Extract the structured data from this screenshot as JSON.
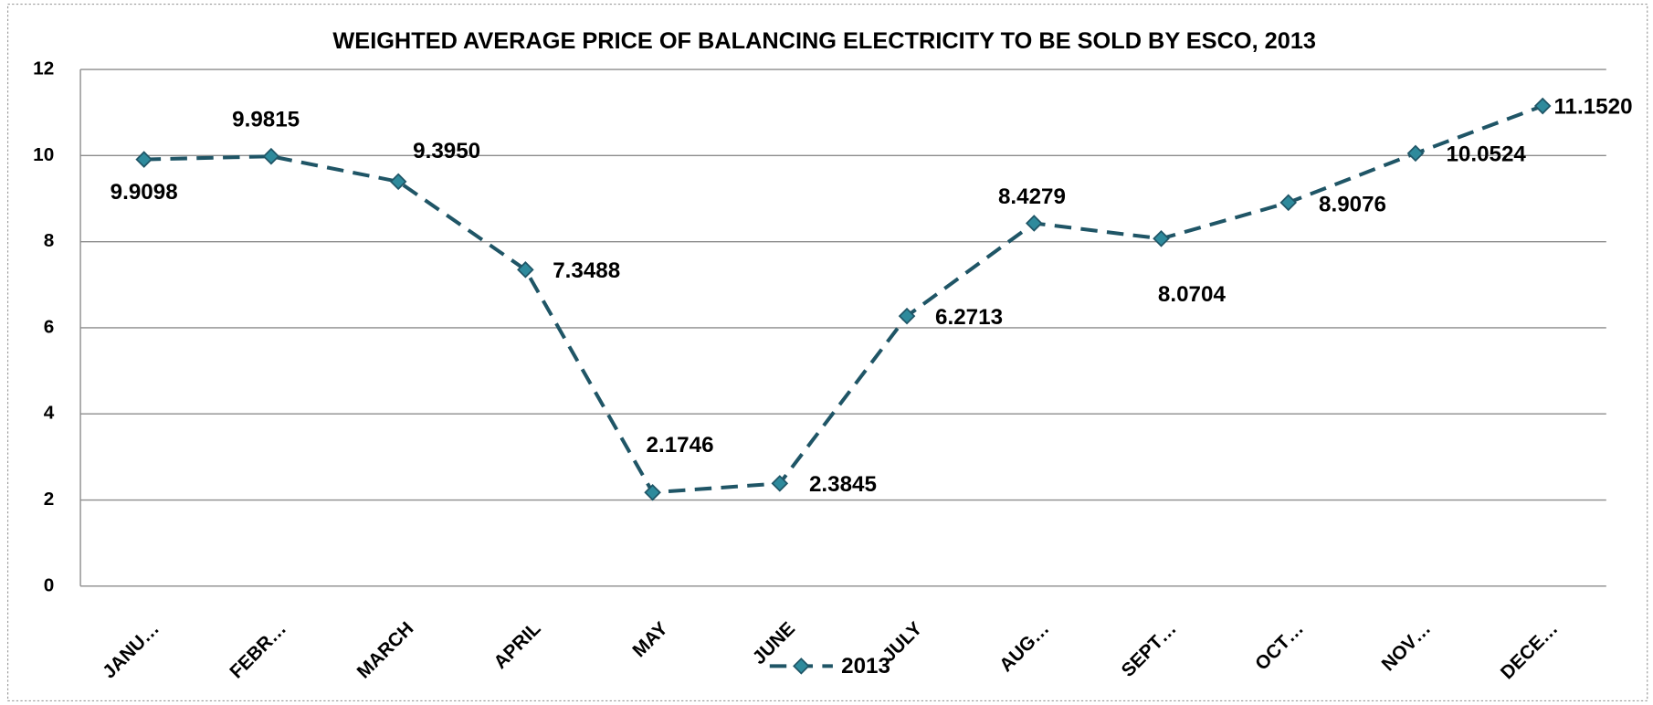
{
  "chart_data": {
    "type": "line",
    "title": "WEIGHTED AVERAGE PRICE OF BALANCING ELECTRICITY TO BE SOLD BY ESCO, 2013",
    "categories": [
      "JANU…",
      "FEBR…",
      "MARCH",
      "APRIL",
      "MAY",
      "JUNE",
      "JULY",
      "AUG…",
      "SEPT…",
      "OCT…",
      "NOV…",
      "DECE…"
    ],
    "series": [
      {
        "name": "2013",
        "color": "#1f5566",
        "marker_color": "#2e8a9c",
        "values": [
          9.9098,
          9.9815,
          9.395,
          7.3488,
          2.1746,
          2.3845,
          6.2713,
          8.4279,
          8.0704,
          8.9076,
          10.0524,
          11.152
        ],
        "value_labels": [
          "9.9098",
          "9.9815",
          "9.3950",
          "7.3488",
          "2.1746",
          "2.3845",
          "6.2713",
          "8.4279",
          "8.0704",
          "8.9076",
          "10.0524",
          "11.1520"
        ]
      }
    ],
    "ylim": [
      0,
      12
    ],
    "yticks": [
      0,
      2,
      4,
      6,
      8,
      10,
      12
    ],
    "grid": true,
    "legend": "bottom"
  }
}
